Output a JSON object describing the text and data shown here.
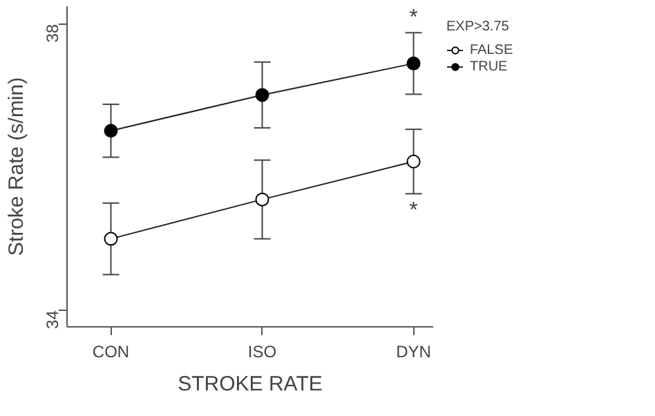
{
  "chart_data": {
    "type": "line",
    "xlabel": "STROKE RATE",
    "ylabel": "Stroke Rate (s/min)",
    "legend_title": "EXP>3.75",
    "categories": [
      "CON",
      "ISO",
      "DYN"
    ],
    "series": [
      {
        "name": "FALSE",
        "color": "#ffffff",
        "values": [
          35.0,
          35.55,
          36.08
        ],
        "errors": [
          0.5,
          0.55,
          0.45
        ]
      },
      {
        "name": "TRUE",
        "color": "#000000",
        "values": [
          36.51,
          37.01,
          37.45
        ],
        "errors": [
          0.37,
          0.46,
          0.43
        ]
      }
    ],
    "ylim": [
      33.77,
      38.25
    ],
    "yticks": [
      34,
      38
    ],
    "marker": "circle",
    "line_style": "solid",
    "grid": false,
    "legend": "right",
    "annotations": [
      "*",
      "*"
    ]
  }
}
